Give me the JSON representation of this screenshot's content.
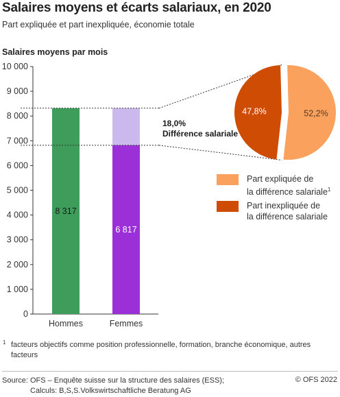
{
  "header": {
    "title": "Salaires moyens et écarts salariaux, en 2020",
    "subtitle": "Part expliquée et part inexpliquée, économie totale"
  },
  "chart_data": [
    {
      "type": "bar",
      "ylabel": "Salaires moyens par mois",
      "ylim": [
        0,
        10000
      ],
      "yticks": [
        0,
        1000,
        2000,
        3000,
        4000,
        5000,
        6000,
        7000,
        8000,
        9000,
        10000
      ],
      "ytick_labels": [
        "0",
        "1 000",
        "2 000",
        "3 000",
        "4 000",
        "5 000",
        "6 000",
        "7 000",
        "8 000",
        "9 000",
        "10 000"
      ],
      "categories": [
        "Hommes",
        "Femmes"
      ],
      "values": [
        8317,
        6817
      ],
      "value_labels": [
        "8 317",
        "6 817"
      ],
      "colors": [
        "#3e9d5a",
        "#9b30d9"
      ],
      "gap_color": "#cbb8ec",
      "grid": false
    },
    {
      "type": "pie",
      "labels": [
        "Part expliquée de la différence salariale",
        "Part inexpliquée de la différence salariale"
      ],
      "values": [
        52.2,
        47.8
      ],
      "value_labels": [
        "52,2%",
        "47,8%"
      ],
      "colors": [
        "#f9a15d",
        "#cf4c05"
      ],
      "annotation": {
        "value": "18,0%",
        "label": "Différence salariale"
      }
    }
  ],
  "legend": {
    "items": [
      {
        "line1": "Part expliquée de",
        "line2": "la différence salariale",
        "sup": "1",
        "color": "#f9a15d"
      },
      {
        "line1": "Part inexpliquée de",
        "line2": "la différence salariale",
        "sup": "",
        "color": "#cf4c05"
      }
    ]
  },
  "footnote": {
    "marker": "1",
    "text": "facteurs objectifs comme position professionnelle, formation, branche économique, autres facteurs"
  },
  "source": {
    "line1": "Source: OFS – Enquête suisse sur la structure des salaires (ESS);",
    "line2": "Calculs: B,S,S.Volkswirtschaftliche Beratung AG",
    "copyright": "© OFS 2022"
  }
}
